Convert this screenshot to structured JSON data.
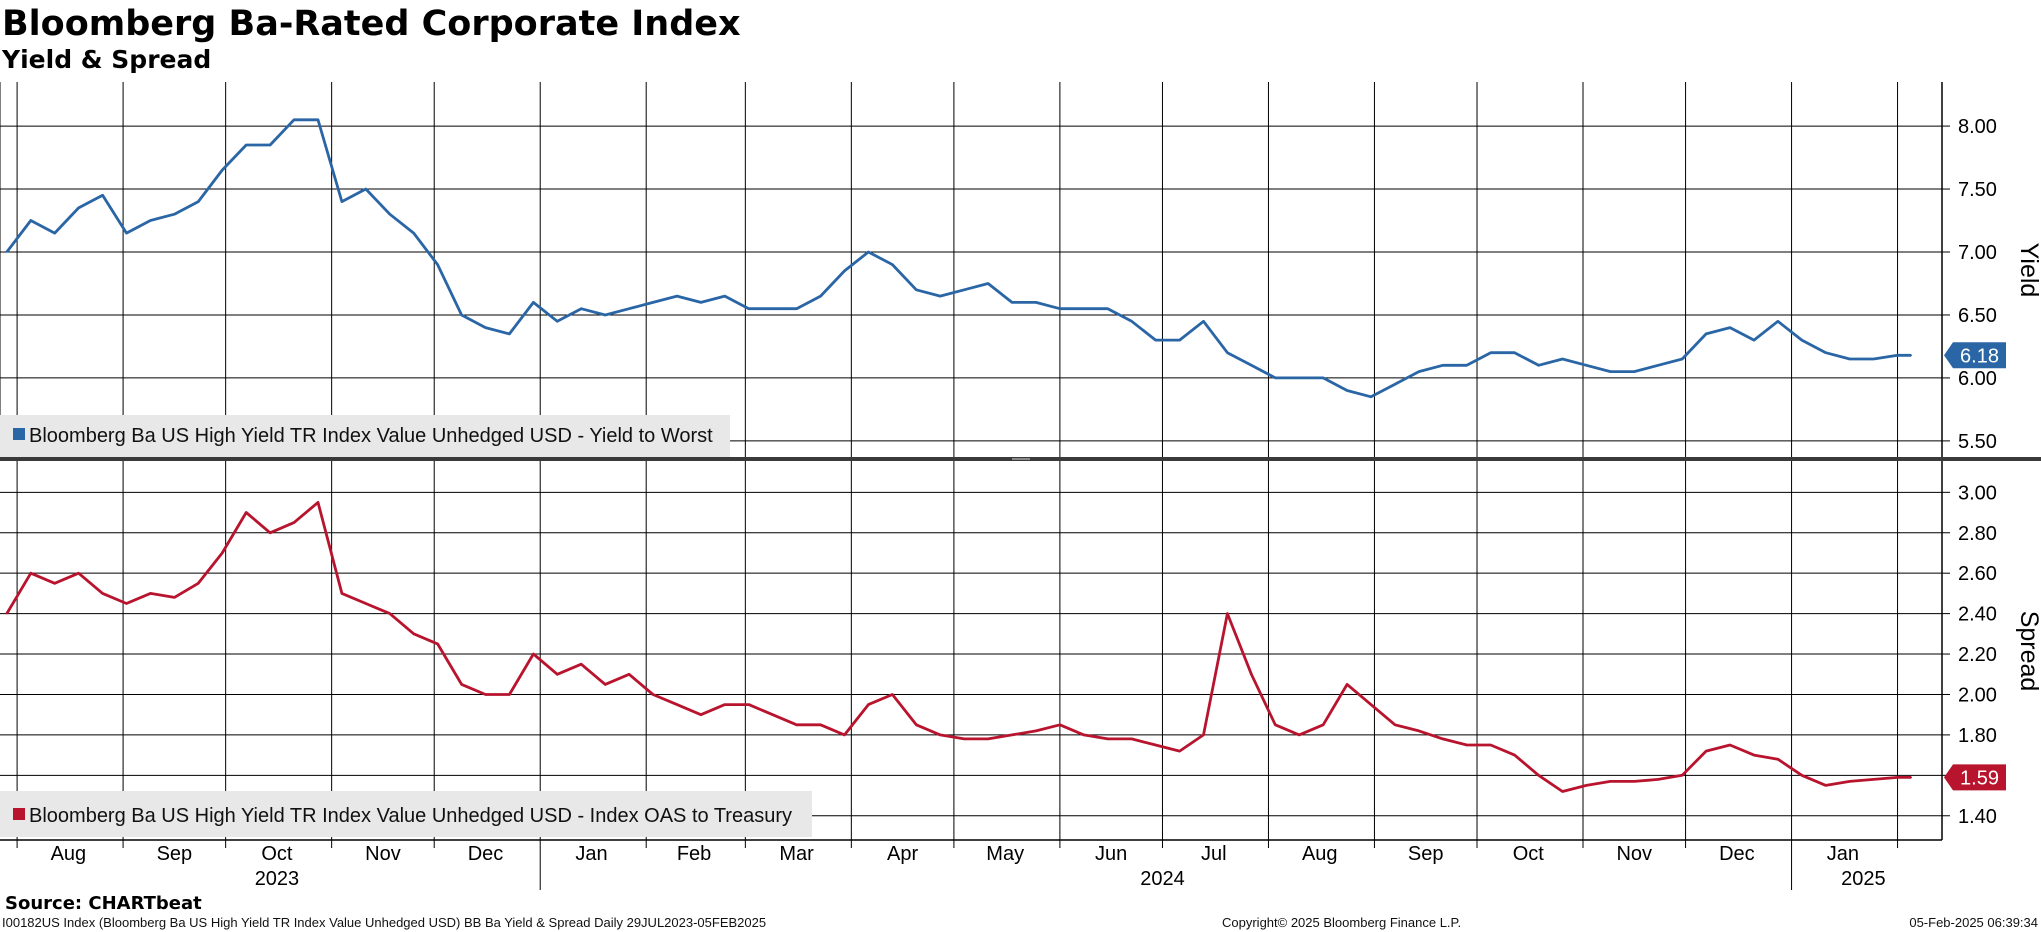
{
  "title": "Bloomberg Ba-Rated Corporate Index",
  "subtitle": "Yield & Spread",
  "source": "Source: CHARTbeat",
  "footer": {
    "left": "I00182US Index (Bloomberg Ba US High Yield  TR Index Value Unhedged USD) BB Ba Yield & Spread  Daily 29JUL2023-05FEB2025",
    "center": "Copyright© 2025 Bloomberg Finance L.P.",
    "right": "05-Feb-2025 06:39:34"
  },
  "colors": {
    "yield": "#2a66a5",
    "spread": "#b8142e",
    "grid": "#000000",
    "divider": "#3a3a3a"
  },
  "chart_data": [
    {
      "type": "line",
      "panel": "top",
      "ylabel": "Yield",
      "ylim": [
        5.5,
        8.1
      ],
      "yticks": [
        "8.00",
        "7.50",
        "7.00",
        "6.50",
        "6.00",
        "5.50"
      ],
      "last_value_label": "6.18",
      "legend_position": "bottom-left",
      "series": [
        {
          "name": "Bloomberg Ba US High Yield TR Index Value Unhedged USD - Yield to Worst",
          "x": [
            "2023-07-29",
            "2023-08-05",
            "2023-08-12",
            "2023-08-19",
            "2023-08-26",
            "2023-09-02",
            "2023-09-09",
            "2023-09-16",
            "2023-09-23",
            "2023-09-30",
            "2023-10-07",
            "2023-10-14",
            "2023-10-21",
            "2023-10-28",
            "2023-11-04",
            "2023-11-11",
            "2023-11-18",
            "2023-11-25",
            "2023-12-02",
            "2023-12-09",
            "2023-12-16",
            "2023-12-23",
            "2023-12-30",
            "2024-01-06",
            "2024-01-13",
            "2024-01-20",
            "2024-01-27",
            "2024-02-03",
            "2024-02-10",
            "2024-02-17",
            "2024-02-24",
            "2024-03-02",
            "2024-03-09",
            "2024-03-16",
            "2024-03-23",
            "2024-03-30",
            "2024-04-06",
            "2024-04-13",
            "2024-04-20",
            "2024-04-27",
            "2024-05-04",
            "2024-05-11",
            "2024-05-18",
            "2024-05-25",
            "2024-06-01",
            "2024-06-08",
            "2024-06-15",
            "2024-06-22",
            "2024-06-29",
            "2024-07-06",
            "2024-07-13",
            "2024-07-20",
            "2024-07-27",
            "2024-08-03",
            "2024-08-10",
            "2024-08-17",
            "2024-08-24",
            "2024-08-31",
            "2024-09-07",
            "2024-09-14",
            "2024-09-21",
            "2024-09-28",
            "2024-10-05",
            "2024-10-12",
            "2024-10-19",
            "2024-10-26",
            "2024-11-02",
            "2024-11-09",
            "2024-11-16",
            "2024-11-23",
            "2024-11-30",
            "2024-12-07",
            "2024-12-14",
            "2024-12-21",
            "2024-12-28",
            "2025-01-04",
            "2025-01-11",
            "2025-01-18",
            "2025-01-25",
            "2025-02-01",
            "2025-02-05"
          ],
          "values": [
            7.0,
            7.25,
            7.15,
            7.35,
            7.45,
            7.15,
            7.25,
            7.3,
            7.4,
            7.65,
            7.85,
            7.85,
            8.05,
            8.05,
            7.4,
            7.5,
            7.3,
            7.15,
            6.9,
            6.5,
            6.4,
            6.35,
            6.6,
            6.45,
            6.55,
            6.5,
            6.55,
            6.6,
            6.65,
            6.6,
            6.65,
            6.55,
            6.55,
            6.55,
            6.65,
            6.85,
            7.0,
            6.9,
            6.7,
            6.65,
            6.7,
            6.75,
            6.6,
            6.6,
            6.55,
            6.55,
            6.55,
            6.45,
            6.3,
            6.3,
            6.45,
            6.2,
            6.1,
            6.0,
            6.0,
            6.0,
            5.9,
            5.85,
            5.95,
            6.05,
            6.1,
            6.1,
            6.2,
            6.2,
            6.1,
            6.15,
            6.1,
            6.05,
            6.05,
            6.1,
            6.15,
            6.35,
            6.4,
            6.3,
            6.45,
            6.3,
            6.2,
            6.15,
            6.15,
            6.18,
            6.18
          ]
        }
      ]
    },
    {
      "type": "line",
      "panel": "bottom",
      "ylabel": "Spread",
      "ylim": [
        1.33,
        3.1
      ],
      "yticks": [
        "3.00",
        "2.80",
        "2.60",
        "2.40",
        "2.20",
        "2.00",
        "1.80",
        "1.60",
        "1.40"
      ],
      "last_value_label": "1.59",
      "legend_position": "bottom-left",
      "x_month_labels": [
        "Aug",
        "Sep",
        "Oct",
        "Nov",
        "Dec",
        "Jan",
        "Feb",
        "Mar",
        "Apr",
        "May",
        "Jun",
        "Jul",
        "Aug",
        "Sep",
        "Oct",
        "Nov",
        "Dec",
        "Jan"
      ],
      "x_year_labels": [
        "2023",
        "2024",
        "2025"
      ],
      "series": [
        {
          "name": "Bloomberg Ba US High Yield TR Index Value Unhedged USD - Index OAS to Treasury",
          "x": [
            "2023-07-29",
            "2023-08-05",
            "2023-08-12",
            "2023-08-19",
            "2023-08-26",
            "2023-09-02",
            "2023-09-09",
            "2023-09-16",
            "2023-09-23",
            "2023-09-30",
            "2023-10-07",
            "2023-10-14",
            "2023-10-21",
            "2023-10-28",
            "2023-11-04",
            "2023-11-11",
            "2023-11-18",
            "2023-11-25",
            "2023-12-02",
            "2023-12-09",
            "2023-12-16",
            "2023-12-23",
            "2023-12-30",
            "2024-01-06",
            "2024-01-13",
            "2024-01-20",
            "2024-01-27",
            "2024-02-03",
            "2024-02-10",
            "2024-02-17",
            "2024-02-24",
            "2024-03-02",
            "2024-03-09",
            "2024-03-16",
            "2024-03-23",
            "2024-03-30",
            "2024-04-06",
            "2024-04-13",
            "2024-04-20",
            "2024-04-27",
            "2024-05-04",
            "2024-05-11",
            "2024-05-18",
            "2024-05-25",
            "2024-06-01",
            "2024-06-08",
            "2024-06-15",
            "2024-06-22",
            "2024-06-29",
            "2024-07-06",
            "2024-07-13",
            "2024-07-20",
            "2024-07-27",
            "2024-08-03",
            "2024-08-10",
            "2024-08-17",
            "2024-08-24",
            "2024-08-31",
            "2024-09-07",
            "2024-09-14",
            "2024-09-21",
            "2024-09-28",
            "2024-10-05",
            "2024-10-12",
            "2024-10-19",
            "2024-10-26",
            "2024-11-02",
            "2024-11-09",
            "2024-11-16",
            "2024-11-23",
            "2024-11-30",
            "2024-12-07",
            "2024-12-14",
            "2024-12-21",
            "2024-12-28",
            "2025-01-04",
            "2025-01-11",
            "2025-01-18",
            "2025-01-25",
            "2025-02-01",
            "2025-02-05"
          ],
          "values": [
            2.4,
            2.6,
            2.55,
            2.6,
            2.5,
            2.45,
            2.5,
            2.48,
            2.55,
            2.7,
            2.9,
            2.8,
            2.85,
            2.95,
            2.5,
            2.45,
            2.4,
            2.3,
            2.25,
            2.05,
            2.0,
            2.0,
            2.2,
            2.1,
            2.15,
            2.05,
            2.1,
            2.0,
            1.95,
            1.9,
            1.95,
            1.95,
            1.9,
            1.85,
            1.85,
            1.8,
            1.95,
            2.0,
            1.85,
            1.8,
            1.78,
            1.78,
            1.8,
            1.82,
            1.85,
            1.8,
            1.78,
            1.78,
            1.75,
            1.72,
            1.8,
            2.4,
            2.1,
            1.85,
            1.8,
            1.85,
            2.05,
            1.95,
            1.85,
            1.82,
            1.78,
            1.75,
            1.75,
            1.7,
            1.6,
            1.52,
            1.55,
            1.57,
            1.57,
            1.58,
            1.6,
            1.72,
            1.75,
            1.7,
            1.68,
            1.6,
            1.55,
            1.57,
            1.58,
            1.59,
            1.59
          ]
        }
      ]
    }
  ]
}
